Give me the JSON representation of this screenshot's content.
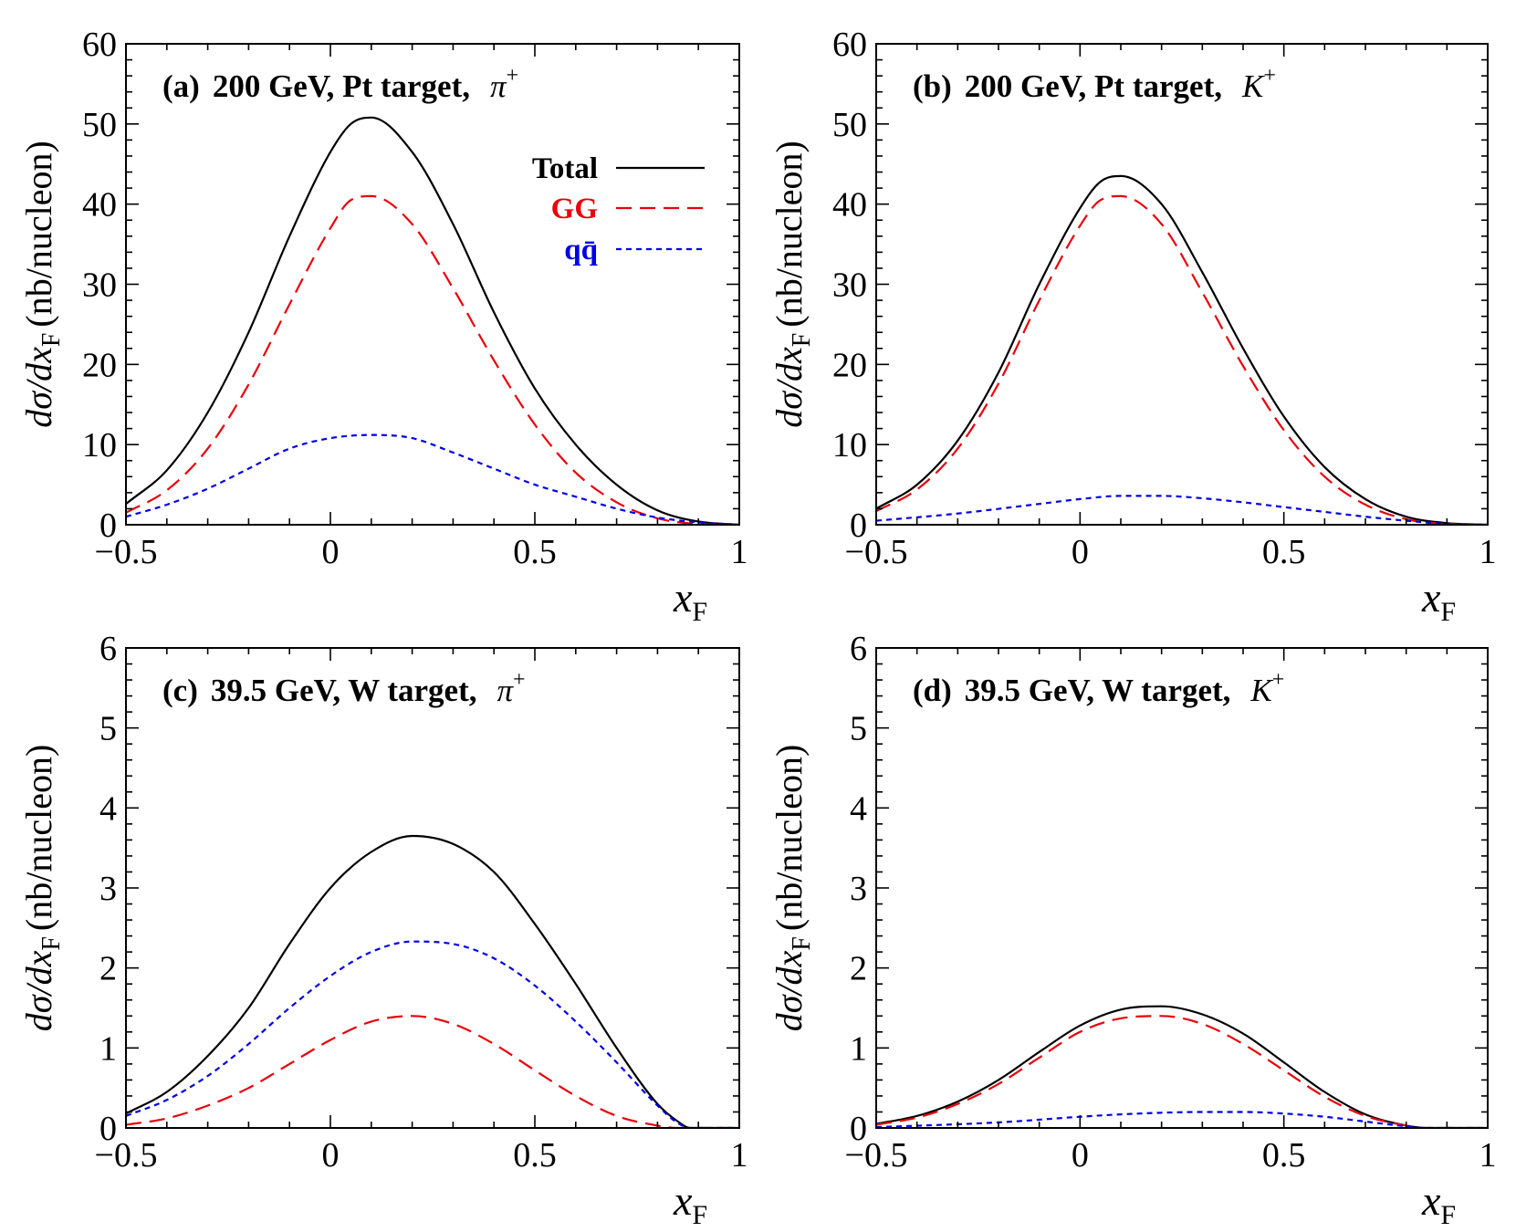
{
  "chart_data": [
    {
      "type": "line",
      "panel_label": "(a)",
      "title_text": "200 GeV, Pt target,",
      "particle": "π",
      "particle_charge": "+",
      "xlabel_main": "x",
      "xlabel_sub": "F",
      "ylabel_pre": "dσ/dx",
      "ylabel_sub": "F",
      "ylabel_post": "(nb/nucleon)",
      "xlim": [
        -0.5,
        1
      ],
      "ylim": [
        0,
        60
      ],
      "xticks": [
        -0.5,
        0,
        0.5,
        1
      ],
      "xtick_labels": [
        "−0.5",
        "0",
        "0.5",
        "1"
      ],
      "yticks": [
        0,
        10,
        20,
        30,
        40,
        50,
        60
      ],
      "ytick_labels": [
        "0",
        "10",
        "20",
        "30",
        "40",
        "50",
        "60"
      ],
      "legend": true,
      "series": [
        {
          "name": "Total",
          "key": "total",
          "x": [
            -0.5,
            -0.4,
            -0.3,
            -0.2,
            -0.1,
            0,
            0.05,
            0.1,
            0.2,
            0.3,
            0.4,
            0.5,
            0.6,
            0.7,
            0.8,
            0.9,
            1.0
          ],
          "values": [
            2.6,
            6.8,
            14.0,
            24.0,
            36.0,
            46.5,
            50.0,
            50.8,
            46.5,
            37.5,
            26.5,
            17.0,
            10.0,
            5.0,
            1.8,
            0.4,
            0
          ]
        },
        {
          "name": "GG",
          "key": "gg",
          "x": [
            -0.5,
            -0.4,
            -0.3,
            -0.2,
            -0.1,
            0,
            0.05,
            0.1,
            0.2,
            0.3,
            0.4,
            0.5,
            0.6,
            0.7,
            0.8,
            0.9,
            1.0
          ],
          "values": [
            1.5,
            4.3,
            9.5,
            17.5,
            27.5,
            37.0,
            40.5,
            41.0,
            37.5,
            29.5,
            20.5,
            12.5,
            6.5,
            2.8,
            0.8,
            0.1,
            0
          ]
        },
        {
          "name": "qq̄",
          "key": "qq",
          "x": [
            -0.5,
            -0.4,
            -0.3,
            -0.2,
            -0.1,
            0,
            0.1,
            0.2,
            0.3,
            0.4,
            0.5,
            0.6,
            0.7,
            0.8,
            0.9,
            1.0
          ],
          "values": [
            1.0,
            2.5,
            4.5,
            7.0,
            9.5,
            10.8,
            11.2,
            10.8,
            9.0,
            7.0,
            5.0,
            3.5,
            2.0,
            0.9,
            0.3,
            0
          ]
        }
      ]
    },
    {
      "type": "line",
      "panel_label": "(b)",
      "title_text": "200 GeV, Pt target,",
      "particle": "K",
      "particle_charge": "+",
      "xlabel_main": "x",
      "xlabel_sub": "F",
      "ylabel_pre": "dσ/dx",
      "ylabel_sub": "F",
      "ylabel_post": "(nb/nucleon)",
      "xlim": [
        -0.5,
        1
      ],
      "ylim": [
        0,
        60
      ],
      "xticks": [
        -0.5,
        0,
        0.5,
        1
      ],
      "xtick_labels": [
        "−0.5",
        "0",
        "0.5",
        "1"
      ],
      "yticks": [
        0,
        10,
        20,
        30,
        40,
        50,
        60
      ],
      "ytick_labels": [
        "0",
        "10",
        "20",
        "30",
        "40",
        "50",
        "60"
      ],
      "legend": false,
      "series": [
        {
          "name": "Total",
          "key": "total",
          "x": [
            -0.5,
            -0.4,
            -0.3,
            -0.2,
            -0.1,
            0,
            0.05,
            0.1,
            0.2,
            0.3,
            0.4,
            0.5,
            0.6,
            0.7,
            0.8,
            0.9,
            1.0
          ],
          "values": [
            2.0,
            5.0,
            10.5,
            19.0,
            30.0,
            39.5,
            42.8,
            43.5,
            40.0,
            31.5,
            22.0,
            13.5,
            7.2,
            3.2,
            1.0,
            0.2,
            0
          ]
        },
        {
          "name": "GG",
          "key": "gg",
          "x": [
            -0.5,
            -0.4,
            -0.3,
            -0.2,
            -0.1,
            0,
            0.05,
            0.1,
            0.2,
            0.3,
            0.4,
            0.5,
            0.6,
            0.7,
            0.8,
            0.9,
            1.0
          ],
          "values": [
            1.7,
            4.4,
            9.5,
            17.6,
            28.0,
            37.3,
            40.5,
            41.0,
            37.5,
            29.0,
            19.8,
            11.8,
            6.0,
            2.5,
            0.7,
            0.1,
            0
          ]
        },
        {
          "name": "qq̄",
          "key": "qq",
          "x": [
            -0.5,
            -0.3,
            -0.1,
            0,
            0.1,
            0.2,
            0.3,
            0.4,
            0.5,
            0.6,
            0.7,
            0.8,
            0.9,
            1.0
          ],
          "values": [
            0.5,
            1.4,
            2.6,
            3.2,
            3.6,
            3.6,
            3.3,
            2.8,
            2.2,
            1.6,
            1.0,
            0.5,
            0.1,
            0
          ]
        }
      ]
    },
    {
      "type": "line",
      "panel_label": "(c)",
      "title_text": "39.5 GeV, W target,",
      "particle": "π",
      "particle_charge": "+",
      "xlabel_main": "x",
      "xlabel_sub": "F",
      "ylabel_pre": "dσ/dx",
      "ylabel_sub": "F",
      "ylabel_post": "(nb/nucleon)",
      "xlim": [
        -0.5,
        1
      ],
      "ylim": [
        0,
        6
      ],
      "xticks": [
        -0.5,
        0,
        0.5,
        1
      ],
      "xtick_labels": [
        "−0.5",
        "0",
        "0.5",
        "1"
      ],
      "yticks": [
        0,
        1,
        2,
        3,
        4,
        5,
        6
      ],
      "ytick_labels": [
        "0",
        "1",
        "2",
        "3",
        "4",
        "5",
        "6"
      ],
      "legend": false,
      "series": [
        {
          "name": "Total",
          "key": "total",
          "x": [
            -0.5,
            -0.4,
            -0.3,
            -0.2,
            -0.1,
            0,
            0.1,
            0.2,
            0.3,
            0.4,
            0.5,
            0.6,
            0.7,
            0.8,
            0.85,
            0.88,
            1.0
          ],
          "values": [
            0.18,
            0.45,
            0.9,
            1.5,
            2.3,
            3.0,
            3.45,
            3.65,
            3.55,
            3.2,
            2.55,
            1.8,
            1.0,
            0.3,
            0.08,
            0,
            0
          ]
        },
        {
          "name": "GG",
          "key": "gg",
          "x": [
            -0.5,
            -0.4,
            -0.3,
            -0.2,
            -0.1,
            0,
            0.1,
            0.2,
            0.3,
            0.4,
            0.5,
            0.6,
            0.7,
            0.8,
            0.85,
            1.0
          ],
          "values": [
            0.04,
            0.12,
            0.28,
            0.5,
            0.8,
            1.1,
            1.33,
            1.4,
            1.3,
            1.05,
            0.72,
            0.4,
            0.15,
            0.03,
            0.0,
            0
          ]
        },
        {
          "name": "qq̄",
          "key": "qq",
          "x": [
            -0.5,
            -0.4,
            -0.3,
            -0.2,
            -0.1,
            0,
            0.1,
            0.2,
            0.3,
            0.4,
            0.5,
            0.6,
            0.7,
            0.8,
            0.85,
            0.88,
            1.0
          ],
          "values": [
            0.15,
            0.35,
            0.65,
            1.05,
            1.5,
            1.9,
            2.2,
            2.33,
            2.3,
            2.12,
            1.78,
            1.33,
            0.82,
            0.28,
            0.06,
            0,
            0
          ]
        }
      ]
    },
    {
      "type": "line",
      "panel_label": "(d)",
      "title_text": "39.5 GeV, W target,",
      "particle": "K",
      "particle_charge": "+",
      "xlabel_main": "x",
      "xlabel_sub": "F",
      "ylabel_pre": "dσ/dx",
      "ylabel_sub": "F",
      "ylabel_post": "(nb/nucleon)",
      "xlim": [
        -0.5,
        1
      ],
      "ylim": [
        0,
        6
      ],
      "xticks": [
        -0.5,
        0,
        0.5,
        1
      ],
      "xtick_labels": [
        "−0.5",
        "0",
        "0.5",
        "1"
      ],
      "yticks": [
        0,
        1,
        2,
        3,
        4,
        5,
        6
      ],
      "ytick_labels": [
        "0",
        "1",
        "2",
        "3",
        "4",
        "5",
        "6"
      ],
      "legend": false,
      "series": [
        {
          "name": "Total",
          "key": "total",
          "x": [
            -0.5,
            -0.4,
            -0.3,
            -0.2,
            -0.1,
            0,
            0.1,
            0.2,
            0.3,
            0.4,
            0.5,
            0.6,
            0.7,
            0.8,
            0.85,
            1.0
          ],
          "values": [
            0.05,
            0.15,
            0.33,
            0.6,
            0.95,
            1.28,
            1.48,
            1.52,
            1.42,
            1.18,
            0.82,
            0.45,
            0.17,
            0.03,
            0.0,
            0
          ]
        },
        {
          "name": "GG",
          "key": "gg",
          "x": [
            -0.5,
            -0.4,
            -0.3,
            -0.2,
            -0.1,
            0,
            0.1,
            0.2,
            0.3,
            0.4,
            0.5,
            0.6,
            0.7,
            0.8,
            0.85,
            1.0
          ],
          "values": [
            0.04,
            0.13,
            0.3,
            0.55,
            0.88,
            1.2,
            1.37,
            1.4,
            1.3,
            1.05,
            0.72,
            0.39,
            0.15,
            0.03,
            0.0,
            0
          ]
        },
        {
          "name": "qq̄",
          "key": "qq",
          "x": [
            -0.5,
            -0.2,
            0,
            0.1,
            0.2,
            0.3,
            0.4,
            0.5,
            0.6,
            0.7,
            0.8,
            0.85,
            1.0
          ],
          "values": [
            0.01,
            0.07,
            0.14,
            0.17,
            0.19,
            0.2,
            0.2,
            0.18,
            0.14,
            0.08,
            0.02,
            0.0,
            0
          ]
        }
      ]
    }
  ],
  "legend": {
    "total": "Total",
    "gg": "GG",
    "qq": "qq̄"
  },
  "colors": {
    "total": "#000000",
    "gg": "#e8000b",
    "qq": "#0000e6",
    "axis": "#000000"
  }
}
